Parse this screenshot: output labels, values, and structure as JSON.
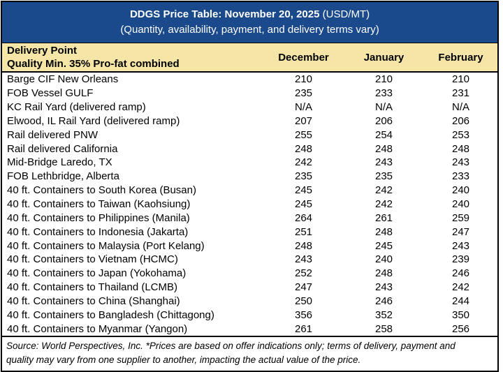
{
  "header": {
    "title_bold": "DDGS Price Table: November 20, 2025",
    "title_unit": " (USD/MT)",
    "subtitle": "(Quantity, availability, payment, and delivery terms vary)"
  },
  "columns": {
    "delivery_point_line1": "Delivery Point",
    "delivery_point_line2": "Quality Min. 35% Pro-fat combined",
    "months": [
      "December",
      "January",
      "February"
    ]
  },
  "rows": [
    {
      "delivery_point": "Barge CIF New Orleans",
      "december": "210",
      "january": "210",
      "february": "210"
    },
    {
      "delivery_point": "FOB Vessel GULF",
      "december": "235",
      "january": "233",
      "february": "231"
    },
    {
      "delivery_point": "KC Rail Yard (delivered ramp)",
      "december": "N/A",
      "january": "N/A",
      "february": "N/A"
    },
    {
      "delivery_point": "Elwood, IL Rail Yard (delivered ramp)",
      "december": "207",
      "january": "206",
      "february": "206"
    },
    {
      "delivery_point": "Rail delivered PNW",
      "december": "255",
      "january": "254",
      "february": "253"
    },
    {
      "delivery_point": "Rail delivered California",
      "december": "248",
      "january": "248",
      "february": "248"
    },
    {
      "delivery_point": "Mid-Bridge Laredo, TX",
      "december": "242",
      "january": "243",
      "february": "243"
    },
    {
      "delivery_point": "FOB Lethbridge, Alberta",
      "december": "235",
      "january": "235",
      "february": "233"
    },
    {
      "delivery_point": "40 ft. Containers to South Korea (Busan)",
      "december": "245",
      "january": "242",
      "february": "240"
    },
    {
      "delivery_point": "40 ft. Containers to Taiwan (Kaohsiung)",
      "december": "245",
      "january": "242",
      "february": "240"
    },
    {
      "delivery_point": "40 ft. Containers to Philippines (Manila)",
      "december": "264",
      "january": "261",
      "february": "259"
    },
    {
      "delivery_point": "40 ft. Containers to Indonesia (Jakarta)",
      "december": "251",
      "january": "248",
      "february": "247"
    },
    {
      "delivery_point": "40 ft. Containers to Malaysia (Port Kelang)",
      "december": "248",
      "january": "245",
      "february": "243"
    },
    {
      "delivery_point": "40 ft. Containers to Vietnam (HCMC)",
      "december": "243",
      "january": "240",
      "february": "239"
    },
    {
      "delivery_point": "40 ft. Containers to Japan (Yokohama)",
      "december": "252",
      "january": "248",
      "february": "246"
    },
    {
      "delivery_point": "40 ft. Containers to Thailand (LCMB)",
      "december": "247",
      "january": "243",
      "february": "242"
    },
    {
      "delivery_point": "40 ft. Containers to China (Shanghai)",
      "december": "250",
      "january": "246",
      "february": "244"
    },
    {
      "delivery_point": "40 ft. Containers to Bangladesh (Chittagong)",
      "december": "356",
      "january": "352",
      "february": "350"
    },
    {
      "delivery_point": "40 ft. Containers to Myanmar (Yangon)",
      "december": "261",
      "january": "258",
      "february": "256"
    }
  ],
  "footer": {
    "line1": "Source: World Perspectives, Inc. *Prices are based on offer indications only; terms of delivery, payment and",
    "line2": "quality may vary from one supplier to another, impacting the actual value of the price."
  },
  "colors": {
    "title_bg": "#1a4a8c",
    "title_text": "#ffffff",
    "subheader_bg": "#f5e6a7",
    "border": "#000000"
  }
}
